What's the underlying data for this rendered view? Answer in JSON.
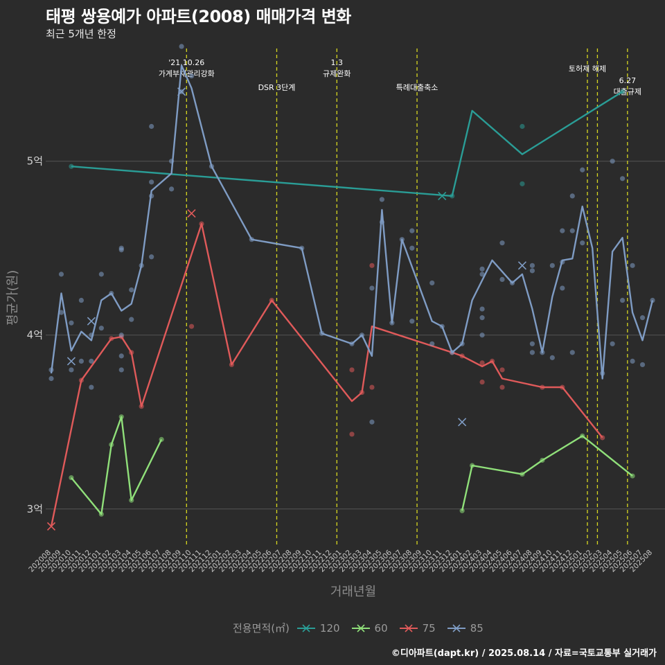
{
  "chart_data": {
    "type": "line",
    "title": "태평 쌍용예가 아파트(2008) 매매가격 변화",
    "subtitle": "최근 5개년 한정",
    "xlabel": "거래년월",
    "ylabel": "평균가(원)",
    "legend_title": "전용면적(㎡)",
    "caption": "©디아파트(dapt.kr) / 2025.08.14 / 자료=국토교통부 실거래가",
    "ylim": [
      2.78,
      5.68
    ],
    "y_ticks": [
      3,
      4,
      5
    ],
    "y_tick_labels": [
      "3억",
      "4억",
      "5억"
    ],
    "x_categories": [
      "202008",
      "202009",
      "202010",
      "202011",
      "202012",
      "202101",
      "202102",
      "202103",
      "202104",
      "202105",
      "202106",
      "202107",
      "202108",
      "202109",
      "202110",
      "202111",
      "202112",
      "202201",
      "202202",
      "202203",
      "202204",
      "202205",
      "202206",
      "202207",
      "202208",
      "202209",
      "202210",
      "202211",
      "202212",
      "202301",
      "202302",
      "202303",
      "202304",
      "202305",
      "202306",
      "202307",
      "202308",
      "202309",
      "202310",
      "202311",
      "202312",
      "202401",
      "202402",
      "202403",
      "202404",
      "202405",
      "202406",
      "202407",
      "202408",
      "202409",
      "202410",
      "202411",
      "202412",
      "202501",
      "202502",
      "202503",
      "202504",
      "202505",
      "202506",
      "202507",
      "202508"
    ],
    "events": [
      {
        "x": 13.5,
        "label": "'21.10.26\n가계부채관리강화",
        "row": 0
      },
      {
        "x": 22.5,
        "label": "DSR 3단계",
        "row": 1
      },
      {
        "x": 28.5,
        "label": "1.3\n규제완화",
        "row": 0
      },
      {
        "x": 36.5,
        "label": "특례대출축소",
        "row": 1
      },
      {
        "x": 53.5,
        "label": "토허제 해제",
        "row": 0
      },
      {
        "x": 54.5,
        "label": "",
        "row": 0
      },
      {
        "x": 57.5,
        "label": "6.27\n대출규제",
        "row": 2
      }
    ],
    "series": [
      {
        "name": "120",
        "color": "#2a9d96",
        "points": [
          [
            2,
            4.97
          ],
          [
            40,
            4.8
          ],
          [
            42,
            5.29
          ],
          [
            47,
            5.04
          ],
          [
            57,
            5.4
          ]
        ],
        "scatter": [
          [
            2,
            4.97
          ],
          [
            40,
            4.8
          ],
          [
            47,
            5.2
          ],
          [
            47,
            4.87
          ],
          [
            57,
            5.4
          ]
        ],
        "crosses": [
          [
            39,
            4.8
          ]
        ]
      },
      {
        "name": "60",
        "color": "#90e07a",
        "points": [
          [
            2,
            3.18
          ],
          [
            5,
            2.97
          ],
          [
            6,
            3.37
          ],
          [
            7,
            3.53
          ],
          [
            8,
            3.05
          ],
          [
            11,
            3.4
          ]
        ],
        "points2": [
          [
            41,
            2.99
          ],
          [
            42,
            3.25
          ],
          [
            47,
            3.2
          ],
          [
            49,
            3.28
          ],
          [
            53,
            3.42
          ],
          [
            58,
            3.19
          ]
        ],
        "scatter": [
          [
            2,
            3.18
          ],
          [
            5,
            2.97
          ],
          [
            6,
            3.37
          ],
          [
            7,
            3.53
          ],
          [
            8,
            3.05
          ],
          [
            11,
            3.4
          ],
          [
            41,
            2.99
          ],
          [
            42,
            3.25
          ],
          [
            47,
            3.2
          ],
          [
            49,
            3.28
          ],
          [
            53,
            3.42
          ],
          [
            58,
            3.19
          ]
        ],
        "crosses": []
      },
      {
        "name": "75",
        "color": "#e05a5a",
        "points": [
          [
            0,
            2.9
          ],
          [
            3,
            3.74
          ],
          [
            6,
            3.98
          ],
          [
            7,
            3.99
          ],
          [
            8,
            3.9
          ],
          [
            9,
            3.59
          ],
          [
            15,
            4.64
          ],
          [
            18,
            3.83
          ],
          [
            22,
            4.2
          ],
          [
            30,
            3.62
          ],
          [
            31,
            3.67
          ],
          [
            32,
            4.05
          ],
          [
            40,
            3.9
          ],
          [
            41,
            3.88
          ],
          [
            43,
            3.82
          ],
          [
            44,
            3.85
          ],
          [
            45,
            3.75
          ],
          [
            49,
            3.7
          ],
          [
            51,
            3.7
          ],
          [
            55,
            3.41
          ]
        ],
        "scatter": [
          [
            3,
            3.74
          ],
          [
            6,
            3.98
          ],
          [
            7,
            3.99
          ],
          [
            8,
            3.9
          ],
          [
            9,
            3.59
          ],
          [
            14,
            4.05
          ],
          [
            15,
            4.64
          ],
          [
            18,
            3.83
          ],
          [
            22,
            4.2
          ],
          [
            30,
            3.8
          ],
          [
            30,
            3.43
          ],
          [
            31,
            3.67
          ],
          [
            32,
            4.4
          ],
          [
            32,
            3.7
          ],
          [
            40,
            3.9
          ],
          [
            41,
            3.88
          ],
          [
            43,
            3.84
          ],
          [
            43,
            3.73
          ],
          [
            44,
            3.85
          ],
          [
            45,
            3.8
          ],
          [
            45,
            3.7
          ],
          [
            49,
            3.7
          ],
          [
            51,
            3.7
          ],
          [
            55,
            3.41
          ]
        ],
        "crosses": [
          [
            0,
            2.9
          ],
          [
            14,
            4.7
          ]
        ]
      },
      {
        "name": "85",
        "color": "#7f9cc4",
        "points": [
          [
            0,
            3.78
          ],
          [
            1,
            4.24
          ],
          [
            2,
            3.91
          ],
          [
            3,
            4.02
          ],
          [
            4,
            3.97
          ],
          [
            5,
            4.2
          ],
          [
            6,
            4.24
          ],
          [
            7,
            4.14
          ],
          [
            8,
            4.18
          ],
          [
            9,
            4.4
          ],
          [
            10,
            4.83
          ],
          [
            12,
            4.93
          ],
          [
            13,
            5.55
          ],
          [
            14,
            5.42
          ],
          [
            16,
            4.97
          ],
          [
            20,
            4.55
          ],
          [
            25,
            4.5
          ],
          [
            27,
            4.01
          ],
          [
            30,
            3.95
          ],
          [
            31,
            4.0
          ],
          [
            32,
            3.88
          ],
          [
            33,
            4.72
          ],
          [
            34,
            4.07
          ],
          [
            35,
            4.55
          ],
          [
            38,
            4.08
          ],
          [
            39,
            4.05
          ],
          [
            40,
            3.9
          ],
          [
            41,
            3.95
          ],
          [
            42,
            4.2
          ],
          [
            44,
            4.43
          ],
          [
            46,
            4.3
          ],
          [
            47,
            4.35
          ],
          [
            48,
            4.15
          ],
          [
            49,
            3.9
          ],
          [
            50,
            4.22
          ],
          [
            51,
            4.43
          ],
          [
            52,
            4.44
          ],
          [
            53,
            4.74
          ],
          [
            54,
            4.5
          ],
          [
            55,
            3.75
          ],
          [
            56,
            4.48
          ],
          [
            57,
            4.56
          ],
          [
            58,
            4.13
          ],
          [
            59,
            3.97
          ],
          [
            60,
            4.2
          ]
        ],
        "scatter": [
          [
            0,
            3.8
          ],
          [
            0,
            3.75
          ],
          [
            1,
            4.35
          ],
          [
            1,
            4.13
          ],
          [
            2,
            4.07
          ],
          [
            2,
            3.8
          ],
          [
            3,
            4.2
          ],
          [
            3,
            3.85
          ],
          [
            4,
            4.0
          ],
          [
            4,
            3.85
          ],
          [
            4,
            3.7
          ],
          [
            5,
            4.35
          ],
          [
            5,
            4.04
          ],
          [
            6,
            4.24
          ],
          [
            7,
            4.5
          ],
          [
            7,
            4.49
          ],
          [
            7,
            4.0
          ],
          [
            7,
            3.88
          ],
          [
            7,
            3.8
          ],
          [
            8,
            4.26
          ],
          [
            8,
            4.09
          ],
          [
            9,
            4.4
          ],
          [
            10,
            5.2
          ],
          [
            10,
            4.88
          ],
          [
            10,
            4.8
          ],
          [
            10,
            4.45
          ],
          [
            12,
            5.0
          ],
          [
            12,
            4.84
          ],
          [
            13,
            5.66
          ],
          [
            13,
            5.4
          ],
          [
            14,
            5.49
          ],
          [
            16,
            4.97
          ],
          [
            20,
            4.55
          ],
          [
            25,
            4.5
          ],
          [
            27,
            4.01
          ],
          [
            30,
            3.95
          ],
          [
            31,
            4.0
          ],
          [
            32,
            4.27
          ],
          [
            32,
            3.5
          ],
          [
            33,
            4.78
          ],
          [
            33,
            4.65
          ],
          [
            34,
            4.07
          ],
          [
            35,
            4.55
          ],
          [
            36,
            4.6
          ],
          [
            36,
            4.5
          ],
          [
            36,
            4.08
          ],
          [
            38,
            4.3
          ],
          [
            38,
            3.95
          ],
          [
            39,
            4.05
          ],
          [
            40,
            3.9
          ],
          [
            41,
            3.95
          ],
          [
            43,
            4.38
          ],
          [
            43,
            4.35
          ],
          [
            43,
            4.15
          ],
          [
            43,
            4.1
          ],
          [
            43,
            4.0
          ],
          [
            45,
            4.53
          ],
          [
            45,
            4.32
          ],
          [
            46,
            4.3
          ],
          [
            48,
            4.4
          ],
          [
            48,
            4.37
          ],
          [
            48,
            3.95
          ],
          [
            48,
            3.9
          ],
          [
            49,
            3.9
          ],
          [
            50,
            4.4
          ],
          [
            50,
            3.87
          ],
          [
            51,
            4.6
          ],
          [
            51,
            4.42
          ],
          [
            51,
            4.27
          ],
          [
            52,
            4.8
          ],
          [
            52,
            4.6
          ],
          [
            52,
            3.9
          ],
          [
            53,
            4.95
          ],
          [
            53,
            4.53
          ],
          [
            55,
            3.78
          ],
          [
            56,
            5.0
          ],
          [
            56,
            3.95
          ],
          [
            57,
            4.9
          ],
          [
            57,
            4.2
          ],
          [
            58,
            4.4
          ],
          [
            58,
            3.85
          ],
          [
            59,
            4.1
          ],
          [
            59,
            3.83
          ],
          [
            60,
            4.2
          ]
        ],
        "crosses": [
          [
            2,
            3.85
          ],
          [
            4,
            4.08
          ],
          [
            13,
            5.4
          ],
          [
            41,
            3.5
          ],
          [
            47,
            4.4
          ]
        ]
      }
    ]
  }
}
